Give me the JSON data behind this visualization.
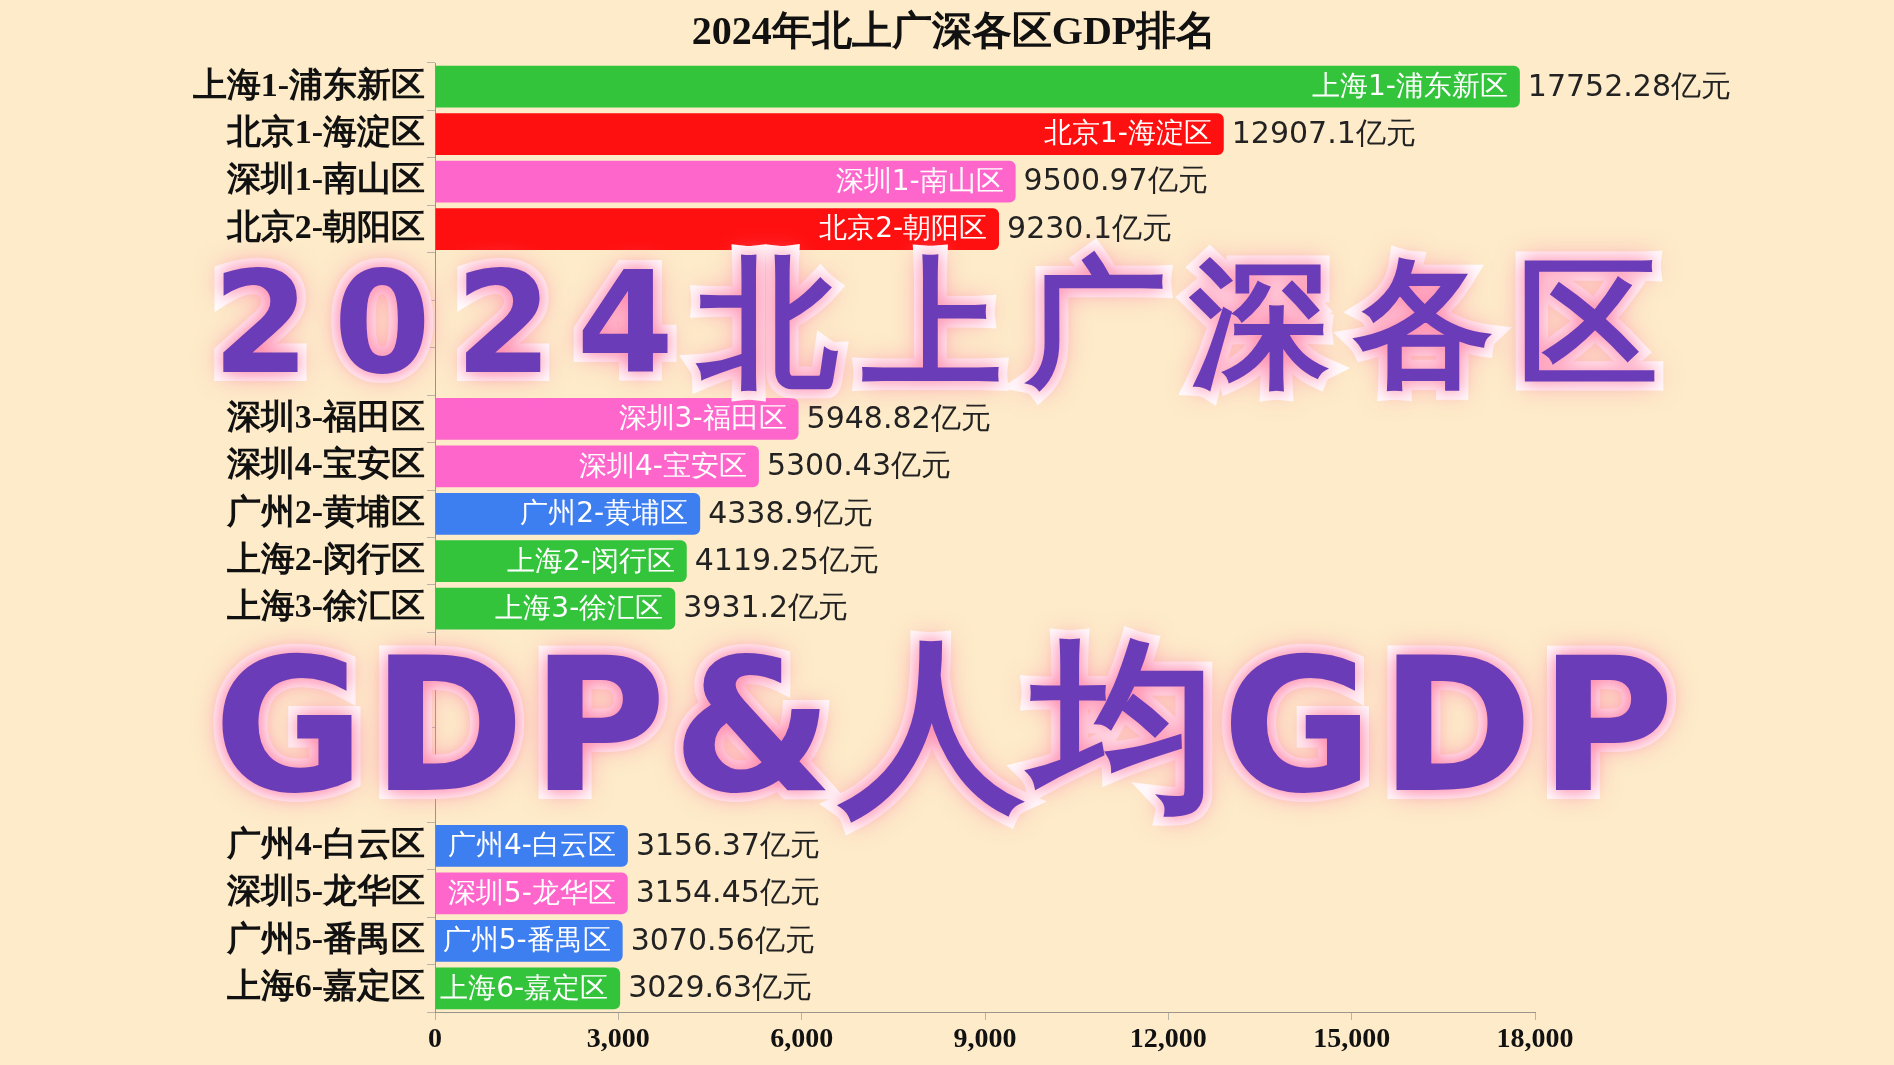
{
  "chart_data": {
    "type": "bar",
    "orientation": "horizontal",
    "title": "2024年北上广深各区GDP排名",
    "categories": [
      "上海1-浦东新区",
      "北京1-海淀区",
      "深圳1-南山区",
      "北京2-朝阳区",
      null,
      null,
      null,
      "深圳3-福田区",
      "深圳4-宝安区",
      "广州2-黄埔区",
      "上海2-闵行区",
      "上海3-徐汇区",
      null,
      null,
      null,
      null,
      "广州4-白云区",
      "深圳5-龙华区",
      "广州5-番禺区",
      "上海6-嘉定区"
    ],
    "values": [
      17752.28,
      12907.1,
      9500.97,
      9230.1,
      null,
      null,
      null,
      5948.82,
      5300.43,
      4338.9,
      4119.25,
      3931.2,
      null,
      null,
      null,
      null,
      3156.37,
      3154.45,
      3070.56,
      3029.63
    ],
    "colors": [
      "#33c43c",
      "#ff1010",
      "#ff66cc",
      "#ff1010",
      null,
      null,
      null,
      "#ff66cc",
      "#ff66cc",
      "#3d7ef0",
      "#33c43c",
      "#33c43c",
      null,
      null,
      null,
      null,
      "#3d7ef0",
      "#ff66cc",
      "#3d7ef0",
      "#33c43c"
    ],
    "value_labels": [
      "17752.28亿元",
      "12907.1亿元",
      "9500.97亿元",
      "9230.1亿元",
      null,
      null,
      null,
      "5948.82亿元",
      "5300.43亿元",
      "4338.9亿元",
      "4119.25亿元",
      "3931.2亿元",
      null,
      null,
      null,
      null,
      "3156.37亿元",
      "3154.45亿元",
      "3070.56亿元",
      "3029.63亿元"
    ],
    "xlim": [
      0,
      18000
    ],
    "xticks": [
      0,
      {
        "value": 3000,
        "label": "3,000"
      },
      {
        "value": 6000,
        "label": "6,000"
      },
      {
        "value": 9000,
        "label": "9,000"
      },
      {
        "value": 12000,
        "label": "12,000"
      },
      {
        "value": 15000,
        "label": "15,000"
      },
      {
        "value": 18000,
        "label": "18,000"
      }
    ],
    "grid": false,
    "annotations": [
      "2024北上广深各区",
      "GDP&人均GDP"
    ]
  }
}
